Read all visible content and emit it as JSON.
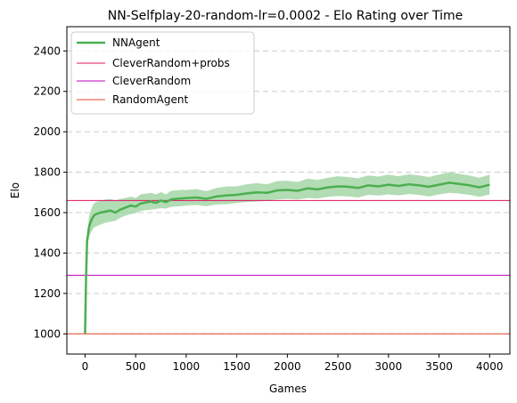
{
  "chart_data": {
    "type": "line",
    "title": "NN-Selfplay-20-random-lr=0.0002 - Elo Rating over Time",
    "xlabel": "Games",
    "ylabel": "Elo",
    "xlim": [
      -180,
      4200
    ],
    "ylim": [
      900,
      2520
    ],
    "xticks": [
      0,
      500,
      1000,
      1500,
      2000,
      2500,
      3000,
      3500,
      4000
    ],
    "yticks": [
      1000,
      1200,
      1400,
      1600,
      1800,
      2000,
      2200,
      2400
    ],
    "xtick_labels": [
      "0",
      "500",
      "1000",
      "1500",
      "2000",
      "2500",
      "3000",
      "3500",
      "4000"
    ],
    "ytick_labels": [
      "1000",
      "1200",
      "1400",
      "1600",
      "1800",
      "2000",
      "2200",
      "2400"
    ],
    "grid": "horizontal dashed",
    "legend_position": "top-left",
    "series": [
      {
        "name": "NNAgent",
        "color": "#4caf50",
        "band_color": "#a5d6a7",
        "x": [
          0,
          10,
          20,
          40,
          60,
          80,
          100,
          150,
          200,
          250,
          300,
          350,
          400,
          450,
          500,
          550,
          600,
          650,
          700,
          750,
          800,
          850,
          900,
          950,
          1000,
          1100,
          1200,
          1300,
          1400,
          1500,
          1600,
          1700,
          1800,
          1900,
          2000,
          2100,
          2200,
          2300,
          2400,
          2500,
          2600,
          2700,
          2800,
          2900,
          3000,
          3100,
          3200,
          3300,
          3400,
          3500,
          3600,
          3700,
          3800,
          3900,
          4000
        ],
        "y": [
          1000,
          1280,
          1460,
          1530,
          1560,
          1580,
          1590,
          1600,
          1605,
          1610,
          1600,
          1615,
          1625,
          1635,
          1630,
          1645,
          1650,
          1655,
          1648,
          1660,
          1652,
          1665,
          1668,
          1670,
          1672,
          1675,
          1668,
          1680,
          1685,
          1688,
          1695,
          1700,
          1698,
          1710,
          1712,
          1708,
          1720,
          1715,
          1725,
          1730,
          1728,
          1722,
          1735,
          1730,
          1738,
          1732,
          1740,
          1735,
          1728,
          1738,
          1748,
          1742,
          1735,
          1725,
          1738
        ],
        "lower": [
          1000,
          1250,
          1420,
          1480,
          1505,
          1520,
          1530,
          1540,
          1550,
          1555,
          1560,
          1575,
          1585,
          1592,
          1598,
          1608,
          1612,
          1615,
          1618,
          1622,
          1620,
          1628,
          1630,
          1632,
          1635,
          1638,
          1632,
          1640,
          1642,
          1648,
          1652,
          1655,
          1658,
          1665,
          1668,
          1665,
          1672,
          1670,
          1678,
          1682,
          1680,
          1675,
          1688,
          1684,
          1690,
          1685,
          1692,
          1688,
          1680,
          1690,
          1698,
          1694,
          1688,
          1678,
          1690
        ],
        "upper": [
          1000,
          1310,
          1500,
          1580,
          1615,
          1640,
          1650,
          1660,
          1665,
          1668,
          1660,
          1668,
          1672,
          1680,
          1672,
          1690,
          1694,
          1698,
          1690,
          1702,
          1690,
          1708,
          1710,
          1712,
          1712,
          1716,
          1706,
          1722,
          1730,
          1730,
          1740,
          1746,
          1740,
          1756,
          1758,
          1752,
          1768,
          1762,
          1772,
          1780,
          1776,
          1770,
          1784,
          1778,
          1788,
          1780,
          1790,
          1784,
          1776,
          1788,
          1800,
          1792,
          1784,
          1772,
          1788
        ]
      },
      {
        "name": "CleverRandom+probs",
        "color": "#e0115f",
        "y_const": 1660
      },
      {
        "name": "CleverRandom",
        "color": "#c000c0",
        "y_const": 1290
      },
      {
        "name": "RandomAgent",
        "color": "#e8442a",
        "y_const": 1000
      }
    ]
  }
}
